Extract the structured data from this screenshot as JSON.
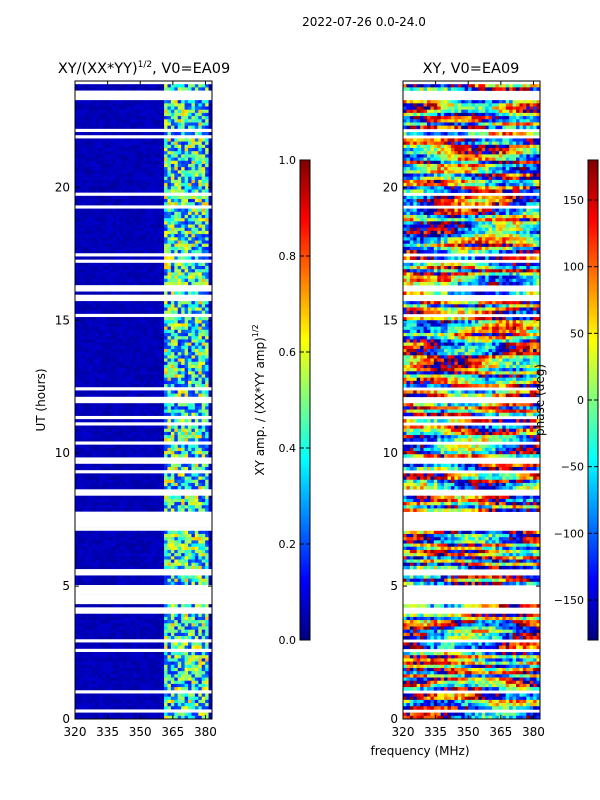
{
  "figure": {
    "suptitle": "2022-07-26 0.0-24.0",
    "xlabel": "frequency (MHz)"
  },
  "chart_data": [
    {
      "type": "heatmap",
      "title_main": "XY/(XX*YY)",
      "title_sup": "1/2",
      "title_rest": ", V0=EA09",
      "ylabel": "UT (hours)",
      "xlim": [
        320,
        383
      ],
      "ylim": [
        0,
        24
      ],
      "xticks": [
        "320",
        "335",
        "350",
        "365",
        "380"
      ],
      "yticks": [
        "0",
        "5",
        "10",
        "15",
        "20"
      ],
      "colorbar": {
        "label_main": "XY amp. / (XX*YY amp)",
        "label_sup": "1/2",
        "vmin": 0.0,
        "vmax": 1.0,
        "ticks": [
          "0.0",
          "0.2",
          "0.4",
          "0.6",
          "0.8",
          "1.0"
        ]
      }
    },
    {
      "type": "heatmap",
      "title": "XY, V0=EA09",
      "xlim": [
        320,
        383
      ],
      "ylim": [
        0,
        24
      ],
      "xticks": [
        "320",
        "335",
        "350",
        "365",
        "380"
      ],
      "yticks": [
        "0",
        "5",
        "10",
        "15",
        "20"
      ],
      "colorbar": {
        "label": "phase (deg)",
        "vmin": -180,
        "vmax": 180,
        "ticks": [
          "−150",
          "−100",
          "−50",
          "0",
          "50",
          "100",
          "150"
        ]
      }
    }
  ],
  "colormap": {
    "name": "jet",
    "stops": [
      "#00007f",
      "#0000ff",
      "#007fff",
      "#00ffff",
      "#7fff7f",
      "#ffff00",
      "#ff7f00",
      "#ff0000",
      "#7f0000"
    ]
  }
}
